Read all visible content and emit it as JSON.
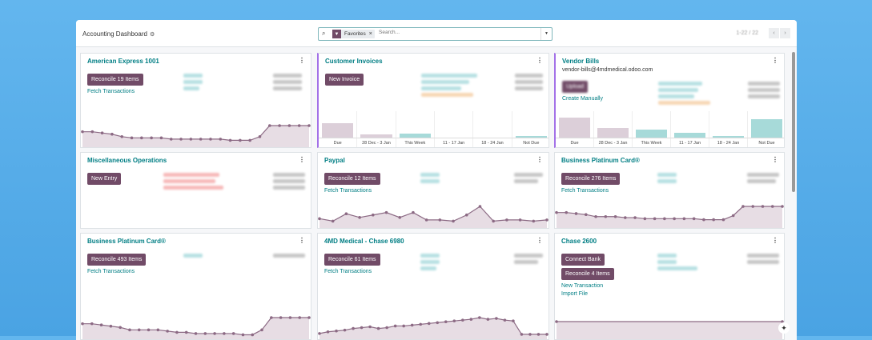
{
  "header": {
    "title": "Accounting Dashboard",
    "facet": "Favorites",
    "search_placeholder": "Search...",
    "pager": "1-22 / 22"
  },
  "colors": {
    "brand": "#714b67",
    "teal": "#017e84",
    "line": "#8c6a84",
    "fill": "#e7dde4",
    "past_bar": "#dccfd9",
    "future_bar": "#a7dad9"
  },
  "bar_categories": [
    "Due",
    "28 Dec - 3 Jan",
    "This Week",
    "11 - 17 Jan",
    "18 - 24 Jan",
    "Not Due"
  ],
  "cards": [
    {
      "title": "American Express 1001",
      "buttons": [
        "Reconcile 19 Items"
      ],
      "links": [
        "Fetch Transactions"
      ],
      "chart": "line",
      "trend": [
        10,
        10,
        9,
        8,
        6,
        5,
        5,
        5,
        5,
        4,
        4,
        4,
        4,
        4,
        4,
        3,
        3,
        3,
        6,
        15,
        15,
        15,
        15,
        15
      ]
    },
    {
      "title": "Customer Invoices",
      "buttons": [
        "New Invoice"
      ],
      "links": [],
      "chart": "bar",
      "bar_values": [
        60,
        15,
        20,
        3,
        0,
        8
      ]
    },
    {
      "title": "Vendor Bills",
      "subtitle": "vendor-bills@4mdmedical.odoo.com",
      "buttons": [
        "Upload"
      ],
      "links": [
        "Create Manually"
      ],
      "chart": "bar",
      "bar_values": [
        80,
        40,
        35,
        22,
        10,
        75
      ]
    },
    {
      "title": "Miscellaneous Operations",
      "buttons": [
        "New Entry"
      ],
      "links": [],
      "chart": "none"
    },
    {
      "title": "Paypal",
      "buttons": [
        "Reconcile 12 Items"
      ],
      "links": [
        "Fetch Transactions"
      ],
      "chart": "line",
      "trend": [
        5,
        3,
        9,
        6,
        8,
        10,
        6,
        10,
        4,
        4,
        3,
        8,
        15,
        3,
        4,
        4,
        3,
        4
      ]
    },
    {
      "title": "Business Platinum Card®",
      "buttons": [
        "Reconcile 276 Items"
      ],
      "links": [
        "Fetch Transactions"
      ],
      "chart": "line",
      "trend": [
        12,
        12,
        11,
        10,
        8,
        8,
        8,
        7,
        7,
        6,
        6,
        6,
        6,
        6,
        6,
        5,
        5,
        5,
        9,
        18,
        18,
        18,
        18,
        18
      ]
    },
    {
      "title": "Business Platinum Card®",
      "buttons": [
        "Reconcile 493 Items"
      ],
      "links": [
        "Fetch Transactions"
      ],
      "chart": "line",
      "trend": [
        10,
        10,
        9,
        8,
        7,
        5,
        5,
        5,
        5,
        4,
        3,
        3,
        2,
        2,
        2,
        2,
        2,
        1,
        1,
        5,
        15,
        15,
        15,
        15,
        15
      ]
    },
    {
      "title": "4MD Medical - Chase 6980",
      "buttons": [
        "Reconcile 61 Items"
      ],
      "links": [
        "Fetch Transactions"
      ],
      "chart": "line",
      "trend": [
        3,
        5,
        6,
        7,
        9,
        10,
        11,
        9,
        10,
        12,
        12,
        13,
        14,
        15,
        16,
        17,
        18,
        19,
        20,
        22,
        20,
        21,
        19,
        18,
        2,
        2,
        2,
        2
      ]
    },
    {
      "title": "Chase 2600",
      "buttons": [
        "Connect Bank",
        "Reconcile 4 Items"
      ],
      "links": [
        "New Transaction",
        "Import File"
      ],
      "chart": "line",
      "trend": [
        5,
        5
      ]
    }
  ]
}
